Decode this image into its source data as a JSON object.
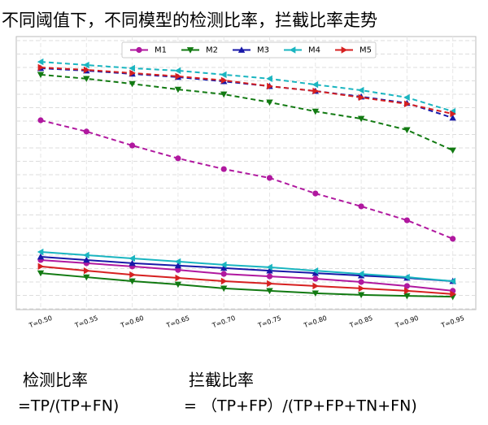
{
  "chart_data": {
    "type": "line",
    "title": "不同阈值下，不同模型的检测比率，拦截比率走势",
    "categories": [
      "T=0.50",
      "T=0.55",
      "T=0.60",
      "T=0.65",
      "T=0.70",
      "T=0.75",
      "T=0.80",
      "T=0.85",
      "T=0.90",
      "T=0.95"
    ],
    "ylim": [
      0,
      100
    ],
    "yticks": [
      0,
      5,
      10,
      15,
      20,
      25,
      30,
      35,
      40,
      45,
      50,
      55,
      60,
      65,
      70,
      75,
      80,
      85,
      90,
      95,
      100
    ],
    "show_ytick_labels": false,
    "grid": true,
    "legend_position": "top",
    "series": [
      {
        "name": "M1",
        "color": "#b0189f",
        "marker": "circle",
        "values": [
          70.3,
          66.1,
          60.9,
          56.1,
          52.1,
          48.8,
          43.0,
          38.2,
          33.0,
          26.1
        ],
        "interception_values": [
          18.2,
          17.0,
          15.8,
          14.5,
          13.0,
          12.1,
          11.2,
          10.0,
          8.5,
          6.7
        ]
      },
      {
        "name": "M2",
        "color": "#127a12",
        "marker": "triangle-down",
        "values": [
          87.3,
          85.8,
          83.9,
          81.8,
          80.0,
          77.0,
          73.6,
          70.9,
          66.7,
          59.1
        ],
        "interception_values": [
          13.3,
          11.8,
          10.3,
          9.1,
          7.6,
          6.7,
          5.8,
          5.2,
          4.8,
          4.5
        ]
      },
      {
        "name": "M3",
        "color": "#1818a8",
        "marker": "triangle-up",
        "values": [
          89.7,
          88.8,
          87.6,
          86.4,
          84.8,
          83.0,
          81.2,
          79.1,
          76.7,
          71.2
        ],
        "interception_values": [
          19.4,
          18.2,
          17.0,
          16.1,
          15.2,
          14.2,
          13.3,
          12.4,
          11.5,
          10.3
        ]
      },
      {
        "name": "M4",
        "color": "#1ab5c0",
        "marker": "triangle-left",
        "values": [
          92.1,
          90.9,
          89.7,
          88.8,
          87.3,
          85.8,
          83.6,
          81.5,
          78.8,
          73.6
        ],
        "interception_values": [
          21.2,
          20.0,
          18.8,
          17.6,
          16.4,
          15.5,
          14.2,
          13.0,
          11.8,
          10.3
        ]
      },
      {
        "name": "M5",
        "color": "#d62020",
        "marker": "triangle-right",
        "values": [
          90.0,
          89.1,
          87.9,
          86.7,
          85.2,
          83.0,
          81.2,
          78.8,
          76.4,
          72.7
        ],
        "interception_values": [
          15.8,
          14.2,
          12.7,
          11.5,
          10.3,
          9.4,
          8.5,
          7.6,
          6.7,
          5.5
        ]
      }
    ],
    "annotations": [
      {
        "label": "检测比率",
        "formula": "=TP/(TP+FN)"
      },
      {
        "label": "拦截比率",
        "formula": "= （TP+FP）/(TP+FP+TN+FN)"
      }
    ]
  }
}
